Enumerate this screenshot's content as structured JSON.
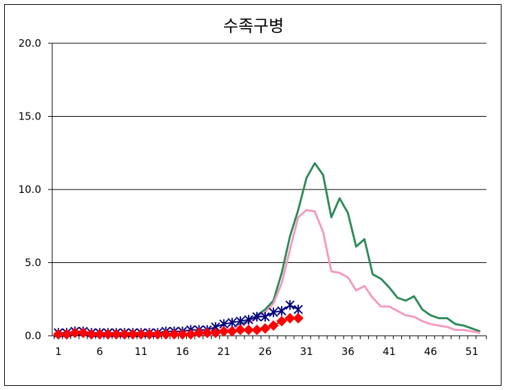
{
  "chart_data": {
    "type": "line",
    "title": "수족구병",
    "xlabel": "",
    "ylabel": "",
    "ylim": [
      0,
      20
    ],
    "xlim": [
      1,
      52
    ],
    "y_ticks": [
      "0.0",
      "5.0",
      "10.0",
      "15.0",
      "20.0"
    ],
    "x_ticks": [
      "1",
      "6",
      "11",
      "16",
      "21",
      "26",
      "31",
      "36",
      "41",
      "46",
      "51"
    ],
    "grid": "horizontal",
    "legend": "none",
    "series": [
      {
        "color": "#2e8b57",
        "marker": "none",
        "x": [
          1,
          2,
          3,
          4,
          5,
          6,
          7,
          8,
          9,
          10,
          11,
          12,
          13,
          14,
          15,
          16,
          17,
          18,
          19,
          20,
          21,
          22,
          23,
          24,
          25,
          26,
          27,
          28,
          29,
          30,
          31,
          32,
          33,
          34,
          35,
          36,
          37,
          38,
          39,
          40,
          41,
          42,
          43,
          44,
          45,
          46,
          47,
          48,
          49,
          50,
          51,
          52
        ],
        "values": [
          0.1,
          0.1,
          0.1,
          0.1,
          0.1,
          0.1,
          0.1,
          0.1,
          0.1,
          0.1,
          0.1,
          0.1,
          0.1,
          0.1,
          0.1,
          0.1,
          0.1,
          0.1,
          0.1,
          0.2,
          0.3,
          0.5,
          0.8,
          1.0,
          1.4,
          1.8,
          2.4,
          4.3,
          6.8,
          8.6,
          10.8,
          11.8,
          11.0,
          8.1,
          9.4,
          8.4,
          6.1,
          6.6,
          4.2,
          3.9,
          3.3,
          2.6,
          2.4,
          2.7,
          1.8,
          1.4,
          1.2,
          1.2,
          0.8,
          0.7,
          0.5,
          0.3
        ]
      },
      {
        "color": "#f49ac1",
        "marker": "none",
        "x": [
          1,
          2,
          3,
          4,
          5,
          6,
          7,
          8,
          9,
          10,
          11,
          12,
          13,
          14,
          15,
          16,
          17,
          18,
          19,
          20,
          21,
          22,
          23,
          24,
          25,
          26,
          27,
          28,
          29,
          30,
          31,
          32,
          33,
          34,
          35,
          36,
          37,
          38,
          39,
          40,
          41,
          42,
          43,
          44,
          45,
          46,
          47,
          48,
          49,
          50,
          51,
          52
        ],
        "values": [
          0.1,
          0.1,
          0.1,
          0.1,
          0.1,
          0.1,
          0.1,
          0.1,
          0.1,
          0.1,
          0.1,
          0.1,
          0.1,
          0.1,
          0.1,
          0.1,
          0.1,
          0.1,
          0.1,
          0.2,
          0.3,
          0.5,
          0.7,
          0.9,
          1.2,
          1.6,
          2.2,
          3.6,
          5.9,
          8.1,
          8.6,
          8.5,
          7.1,
          4.4,
          4.3,
          4.0,
          3.1,
          3.4,
          2.6,
          2.0,
          2.0,
          1.7,
          1.4,
          1.3,
          1.0,
          0.8,
          0.7,
          0.6,
          0.4,
          0.4,
          0.3,
          0.2
        ]
      },
      {
        "color": "#000080",
        "marker": "asterisk",
        "x": [
          1,
          2,
          3,
          4,
          5,
          6,
          7,
          8,
          9,
          10,
          11,
          12,
          13,
          14,
          15,
          16,
          17,
          18,
          19,
          20,
          21,
          22,
          23,
          24,
          25,
          26,
          27,
          28,
          29,
          30
        ],
        "values": [
          0.2,
          0.2,
          0.3,
          0.3,
          0.2,
          0.2,
          0.2,
          0.2,
          0.2,
          0.2,
          0.2,
          0.2,
          0.2,
          0.3,
          0.3,
          0.3,
          0.4,
          0.4,
          0.4,
          0.6,
          0.8,
          0.9,
          1.0,
          1.1,
          1.3,
          1.3,
          1.6,
          1.7,
          2.1,
          1.8
        ]
      },
      {
        "color": "#ff0000",
        "marker": "diamond",
        "x": [
          1,
          2,
          3,
          4,
          5,
          6,
          7,
          8,
          9,
          10,
          11,
          12,
          13,
          14,
          15,
          16,
          17,
          18,
          19,
          20,
          21,
          22,
          23,
          24,
          25,
          26,
          27,
          28,
          29,
          30
        ],
        "values": [
          0.1,
          0.1,
          0.2,
          0.2,
          0.1,
          0.1,
          0.1,
          0.1,
          0.1,
          0.1,
          0.1,
          0.1,
          0.1,
          0.1,
          0.1,
          0.1,
          0.1,
          0.2,
          0.2,
          0.2,
          0.3,
          0.3,
          0.4,
          0.4,
          0.4,
          0.5,
          0.7,
          1.0,
          1.2,
          1.2
        ]
      }
    ]
  }
}
